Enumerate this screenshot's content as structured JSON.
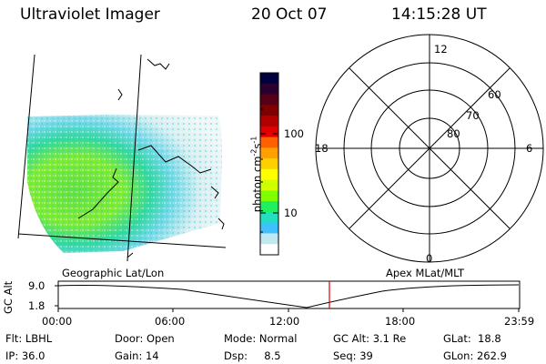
{
  "header": {
    "instrument": "Ultraviolet Imager",
    "date": "20 Oct 07",
    "time": "14:15:28 UT"
  },
  "colorbar": {
    "label": "photon cm-2s-1",
    "label_base": "photon cm",
    "label_exp1": "-2",
    "label_mid": "s",
    "label_exp2": "-1",
    "ticks": [
      "100",
      "10"
    ],
    "colors": [
      "#000040",
      "#2a0030",
      "#550015",
      "#800000",
      "#b00000",
      "#e00000",
      "#ff6000",
      "#ffa000",
      "#ffd000",
      "#ffff00",
      "#d0ff00",
      "#80ff00",
      "#20f060",
      "#20e0c0",
      "#40c0ff",
      "#c0e8f0",
      "#ffffff"
    ]
  },
  "polar_plot": {
    "mlt_labels": {
      "top": "12",
      "left": "18",
      "right": "6",
      "bottom": "0"
    },
    "lat_labels": [
      "60",
      "70",
      "80"
    ]
  },
  "map_labels": {
    "left": "Geographic Lat/Lon",
    "right": "Apex MLat/MLT"
  },
  "orbit_plot": {
    "ylabel": "GC Alt",
    "yticks": [
      "9.0",
      "1.8"
    ],
    "xticks": [
      "00:00",
      "06:00",
      "12:00",
      "18:00",
      "23:59"
    ],
    "marker_color": "#e00000"
  },
  "info": {
    "filter": "Flt: LBHL",
    "door": "Door: Open",
    "mode": "Mode: Normal",
    "gc_alt": "GC Alt: 3.1 Re",
    "glat": "GLat:  18.8",
    "ip": "IP: 36.0",
    "gain": "Gain: 14",
    "dsp": "Dsp:     8.5",
    "seq": "Seq: 39",
    "glon": "GLon: 262.9"
  }
}
